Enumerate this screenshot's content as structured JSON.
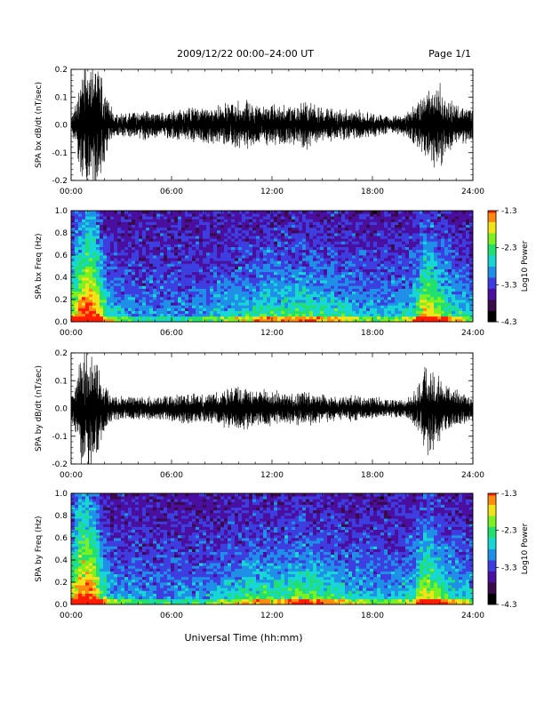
{
  "header": {
    "title": "2009/12/22  00:00–24:00 UT",
    "page": "Page 1/1"
  },
  "footer": {
    "xlabel": "Universal Time (hh:mm)"
  },
  "colors": {
    "background": "#ffffff",
    "trace": "#000000",
    "colormap": [
      "#000000",
      "#3a0a4a",
      "#4b0fa0",
      "#3d3de0",
      "#1f8fe8",
      "#19d6d6",
      "#22e070",
      "#7cf020",
      "#f2e21a",
      "#ff8a10",
      "#ff1a00"
    ]
  },
  "chart_data": [
    {
      "id": "bx_waveform",
      "type": "line",
      "ylabel": "SPA bx dB/dt (nT/sec)",
      "xlim": [
        0,
        24
      ],
      "ylim": [
        -0.2,
        0.2
      ],
      "xticks": [
        "00:00",
        "06:00",
        "12:00",
        "18:00",
        "24:00"
      ],
      "yticks": [
        "-0.2",
        "-0.1",
        "0.0",
        "0.1",
        "0.2"
      ],
      "yticks_values": [
        -0.2,
        -0.1,
        0.0,
        0.1,
        0.2
      ],
      "envelope_x_hours": [
        0,
        0.3,
        0.6,
        1.0,
        1.5,
        2.0,
        2.5,
        3.5,
        4.5,
        5.5,
        6.5,
        7.5,
        8.5,
        9.5,
        10.0,
        10.5,
        11.0,
        12.0,
        13.0,
        14.0,
        15.0,
        16.0,
        17.0,
        18.0,
        19.0,
        20.0,
        20.8,
        21.2,
        21.8,
        22.5,
        23.2,
        24.0
      ],
      "envelope_amplitude": [
        0.03,
        0.08,
        0.18,
        0.2,
        0.22,
        0.12,
        0.04,
        0.04,
        0.05,
        0.04,
        0.05,
        0.06,
        0.06,
        0.07,
        0.08,
        0.09,
        0.07,
        0.07,
        0.06,
        0.08,
        0.06,
        0.05,
        0.05,
        0.04,
        0.03,
        0.04,
        0.08,
        0.12,
        0.15,
        0.09,
        0.07,
        0.05
      ]
    },
    {
      "id": "bx_spectrogram",
      "type": "heatmap",
      "ylabel": "SPA bx Freq (Hz)",
      "xlim": [
        0,
        24
      ],
      "ylim": [
        0.0,
        1.0
      ],
      "xticks": [
        "00:00",
        "06:00",
        "12:00",
        "18:00",
        "24:00"
      ],
      "yticks": [
        "0.0",
        "0.2",
        "0.4",
        "0.6",
        "0.8",
        "1.0"
      ],
      "yticks_values": [
        0.0,
        0.2,
        0.4,
        0.6,
        0.8,
        1.0
      ],
      "colorbar": {
        "label": "Log10 Power",
        "range": [
          -4.3,
          -1.3
        ],
        "ticks": [
          "-1.3",
          "-2.3",
          "-3.3",
          "-4.3"
        ],
        "tick_values": [
          -1.3,
          -2.3,
          -3.3,
          -4.3
        ]
      },
      "activity_x_hours": [
        0,
        0.5,
        1.0,
        1.5,
        2.0,
        2.5,
        4,
        6,
        8,
        9.5,
        10.5,
        11.5,
        12.5,
        13.5,
        14.5,
        15.5,
        16.5,
        17.5,
        18.5,
        19.5,
        20.5,
        21.0,
        21.5,
        22.5,
        23.5,
        24
      ],
      "activity_level": [
        0.7,
        0.9,
        1.0,
        0.95,
        0.55,
        0.3,
        0.15,
        0.15,
        0.2,
        0.35,
        0.4,
        0.5,
        0.45,
        0.55,
        0.5,
        0.45,
        0.4,
        0.3,
        0.25,
        0.3,
        0.45,
        0.85,
        0.8,
        0.55,
        0.35,
        0.3
      ]
    },
    {
      "id": "by_waveform",
      "type": "line",
      "ylabel": "SPA by dB/dt (nT/sec)",
      "xlim": [
        0,
        24
      ],
      "ylim": [
        -0.2,
        0.2
      ],
      "xticks": [
        "00:00",
        "06:00",
        "12:00",
        "18:00",
        "24:00"
      ],
      "yticks": [
        "-0.2",
        "-0.1",
        "0.0",
        "0.1",
        "0.2"
      ],
      "yticks_values": [
        -0.2,
        -0.1,
        0.0,
        0.1,
        0.2
      ],
      "envelope_x_hours": [
        0,
        0.3,
        0.6,
        1.0,
        1.5,
        2.0,
        2.5,
        3.5,
        4.5,
        5.5,
        6.5,
        7.5,
        8.5,
        9.5,
        10.0,
        10.5,
        11.0,
        12.0,
        13.0,
        14.0,
        15.0,
        16.0,
        17.0,
        18.0,
        19.0,
        20.0,
        20.8,
        21.2,
        21.8,
        22.5,
        23.2,
        24.0
      ],
      "envelope_amplitude": [
        0.04,
        0.1,
        0.2,
        0.22,
        0.18,
        0.08,
        0.04,
        0.04,
        0.04,
        0.04,
        0.05,
        0.05,
        0.05,
        0.07,
        0.08,
        0.07,
        0.06,
        0.06,
        0.05,
        0.06,
        0.05,
        0.04,
        0.04,
        0.04,
        0.03,
        0.03,
        0.08,
        0.16,
        0.12,
        0.08,
        0.06,
        0.04
      ]
    },
    {
      "id": "by_spectrogram",
      "type": "heatmap",
      "ylabel": "SPA by Freq (Hz)",
      "xlim": [
        0,
        24
      ],
      "ylim": [
        0.0,
        1.0
      ],
      "xticks": [
        "00:00",
        "06:00",
        "12:00",
        "18:00",
        "24:00"
      ],
      "yticks": [
        "0.0",
        "0.2",
        "0.4",
        "0.6",
        "0.8",
        "1.0"
      ],
      "yticks_values": [
        0.0,
        0.2,
        0.4,
        0.6,
        0.8,
        1.0
      ],
      "colorbar": {
        "label": "Log10 Power",
        "range": [
          -4.3,
          -1.3
        ],
        "ticks": [
          "-1.3",
          "-2.3",
          "-3.3",
          "-4.3"
        ],
        "tick_values": [
          -1.3,
          -2.3,
          -3.3,
          -4.3
        ]
      },
      "activity_x_hours": [
        0,
        0.5,
        1.0,
        1.5,
        2.0,
        2.5,
        4,
        6,
        8,
        9.5,
        10.5,
        11.5,
        12.5,
        13.5,
        14.5,
        15.5,
        16.5,
        17.5,
        18.5,
        19.5,
        20.5,
        21.0,
        21.5,
        22.5,
        23.5,
        24
      ],
      "activity_level": [
        0.75,
        0.95,
        1.0,
        0.9,
        0.5,
        0.3,
        0.15,
        0.15,
        0.2,
        0.35,
        0.45,
        0.5,
        0.45,
        0.6,
        0.55,
        0.5,
        0.4,
        0.3,
        0.25,
        0.3,
        0.45,
        0.8,
        0.75,
        0.5,
        0.35,
        0.3
      ]
    }
  ]
}
